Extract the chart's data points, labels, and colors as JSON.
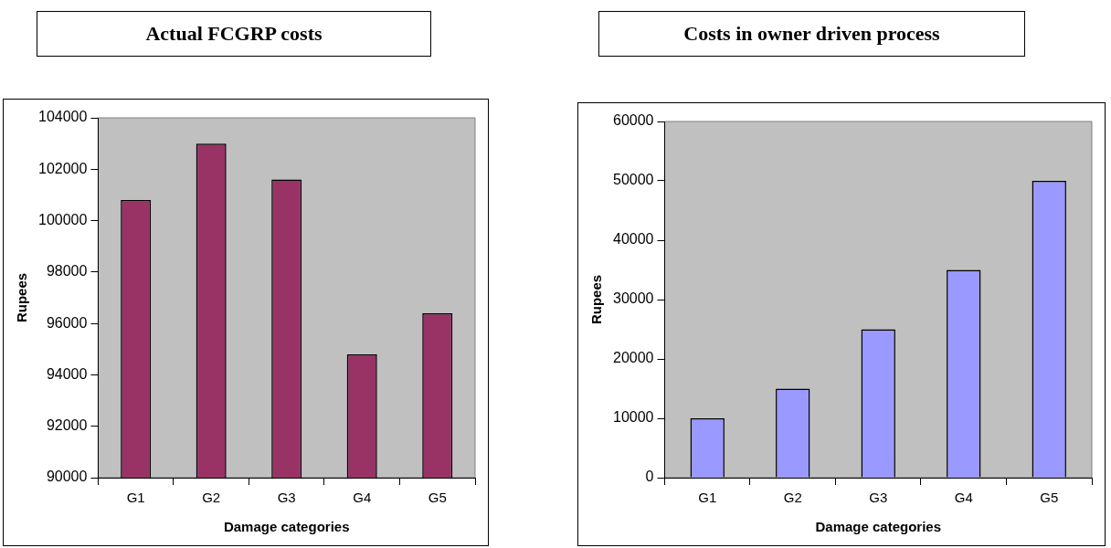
{
  "chart_data": [
    {
      "type": "bar",
      "title": "Actual FCGRP costs",
      "xlabel": "Damage categories",
      "ylabel": "Rupees",
      "categories": [
        "G1",
        "G2",
        "G3",
        "G4",
        "G5"
      ],
      "values": [
        100800,
        103000,
        101600,
        94800,
        96400
      ],
      "color": "#993366",
      "ylim": [
        90000,
        104000
      ],
      "yticks": [
        90000,
        92000,
        94000,
        96000,
        98000,
        100000,
        102000,
        104000
      ],
      "grid": false,
      "legend": false
    },
    {
      "type": "bar",
      "title": "Costs in owner driven process",
      "xlabel": "Damage categories",
      "ylabel": "Rupees",
      "categories": [
        "G1",
        "G2",
        "G3",
        "G4",
        "G5"
      ],
      "values": [
        10000,
        15000,
        25000,
        35000,
        50000
      ],
      "color": "#9999ff",
      "ylim": [
        0,
        60000
      ],
      "yticks": [
        0,
        10000,
        20000,
        30000,
        40000,
        50000,
        60000
      ],
      "grid": false,
      "legend": false
    }
  ]
}
